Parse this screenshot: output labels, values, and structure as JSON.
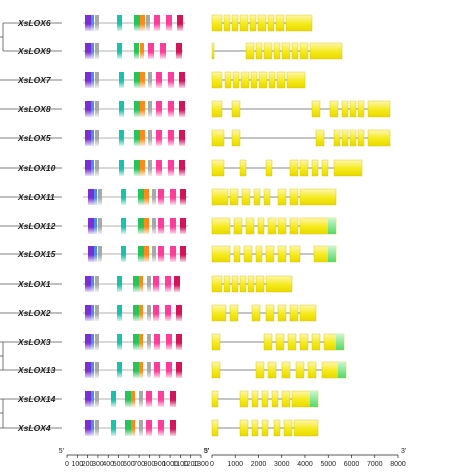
{
  "genes": [
    {
      "name": "XsLOX6"
    },
    {
      "name": "XsLOX9"
    },
    {
      "name": "XsLOX7"
    },
    {
      "name": "XsLOX8"
    },
    {
      "name": "XsLOX5"
    },
    {
      "name": "XsLOX10"
    },
    {
      "name": "XsLOX11"
    },
    {
      "name": "XsLOX12"
    },
    {
      "name": "XsLOX15"
    },
    {
      "name": "XsLOX1"
    },
    {
      "name": "XsLOX2"
    },
    {
      "name": "XsLOX3"
    },
    {
      "name": "XsLOX13"
    },
    {
      "name": "XsLOX14"
    },
    {
      "name": "XsLOX4"
    }
  ],
  "protein_axis": {
    "end_labels": [
      "5'",
      "3'"
    ],
    "ticks": [
      "0",
      "100",
      "200",
      "300",
      "400",
      "500",
      "600",
      "700",
      "800",
      "900",
      "1000",
      "1100",
      "1200",
      "1300"
    ]
  },
  "gene_axis": {
    "end_labels": [
      "5'",
      "3'"
    ],
    "ticks": [
      "0",
      "1000",
      "2000",
      "3000",
      "4000",
      "5000",
      "6000",
      "7000",
      "8000"
    ]
  },
  "colors": {
    "exon_fill": "#f2e600",
    "exon_top": "#fff7a8",
    "utr_fill": "#7ee88a",
    "intron_line": "#888888",
    "motif_colors": [
      "#7a2fd0",
      "#4a8ef0",
      "#19c2a8",
      "#27c45c",
      "#ff8a1a",
      "#ff3c9a",
      "#d4145a",
      "#a8a8a8"
    ]
  }
}
